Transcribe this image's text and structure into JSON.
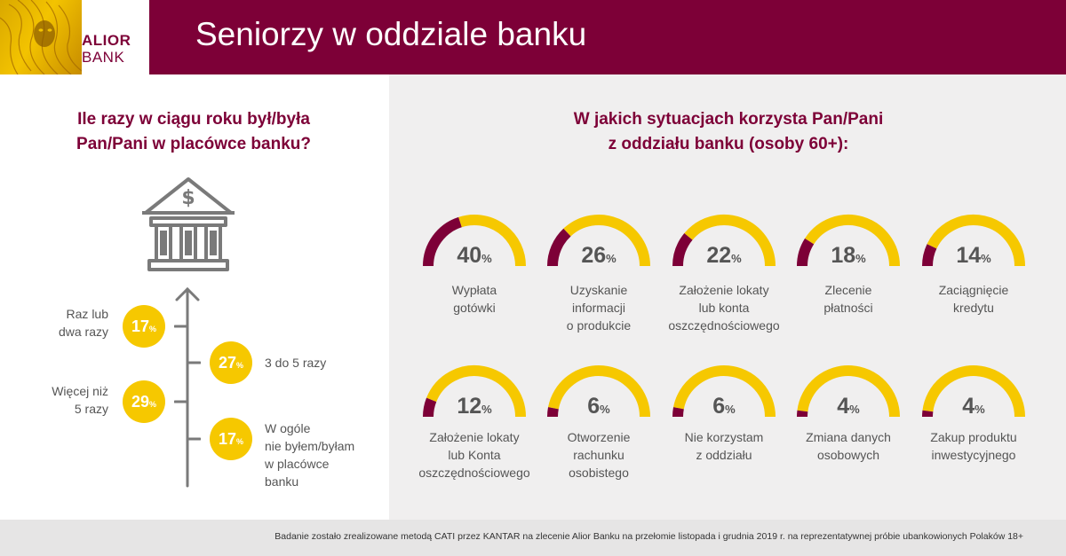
{
  "header": {
    "title": "Seniorzy w oddziale banku",
    "logo_line1": "ALIOR",
    "logo_line2": "BANK",
    "brand_color": "#7d0037",
    "accent_color": "#f6c800"
  },
  "left": {
    "question": [
      "Ile razy w ciągu roku był/była",
      "Pan/Pani w placówce banku?"
    ],
    "icon": "bank-dollar-icon",
    "frequencies": [
      {
        "value": "17",
        "unit": "%",
        "label": [
          "Raz lub",
          "dwa razy"
        ]
      },
      {
        "value": "27",
        "unit": "%",
        "label": [
          "3 do 5 razy"
        ]
      },
      {
        "value": "29",
        "unit": "%",
        "label": [
          "Więcej niż",
          "5 razy"
        ]
      },
      {
        "value": "17",
        "unit": "%",
        "label": [
          "W ogóle",
          "nie byłem/byłam",
          "w placówce",
          "banku"
        ]
      }
    ]
  },
  "right": {
    "question": [
      "W jakich sytuacjach korzysta Pan/Pani",
      "z oddziału banku (osoby 60+):"
    ]
  },
  "chart_data": {
    "type": "gauge",
    "unit": "%",
    "max": 100,
    "items": [
      {
        "value": 40,
        "label": [
          "Wypłata",
          "gotówki"
        ]
      },
      {
        "value": 26,
        "label": [
          "Uzyskanie",
          "informacji",
          "o produkcie"
        ]
      },
      {
        "value": 22,
        "label": [
          "Założenie lokaty",
          "lub konta",
          "oszczędnościowego"
        ]
      },
      {
        "value": 18,
        "label": [
          "Zlecenie",
          "płatności"
        ]
      },
      {
        "value": 14,
        "label": [
          "Zaciągnięcie",
          "kredytu"
        ]
      },
      {
        "value": 12,
        "label": [
          "Założenie lokaty",
          "lub Konta",
          "oszczędnościowego"
        ]
      },
      {
        "value": 6,
        "label": [
          "Otworzenie",
          "rachunku",
          "osobistego"
        ]
      },
      {
        "value": 6,
        "label": [
          "Nie korzystam",
          "z oddziału"
        ]
      },
      {
        "value": 4,
        "label": [
          "Zmiana danych",
          "osobowych"
        ]
      },
      {
        "value": 4,
        "label": [
          "Zakup produktu",
          "inwestycyjnego"
        ]
      }
    ]
  },
  "footer": {
    "note": "Badanie zostało zrealizowane metodą CATI przez KANTAR na zlecenie Alior Banku na przełomie listopada i grudnia 2019 r. na reprezentatywnej próbie ubankowionych Polaków 18+"
  }
}
